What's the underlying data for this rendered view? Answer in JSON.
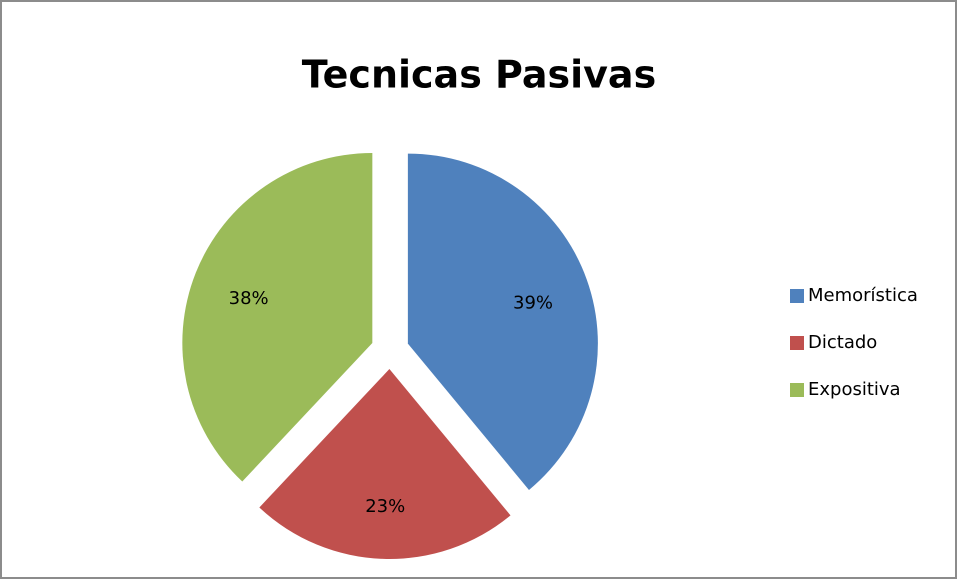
{
  "chart_data": {
    "type": "pie",
    "title": "Tecnicas Pasivas",
    "categories": [
      "Memorística",
      "Dictado",
      "Expositiva"
    ],
    "values": [
      39,
      23,
      38
    ],
    "value_labels": [
      "39%",
      "23%",
      "38%"
    ],
    "colors": [
      "#4f81bd",
      "#c0504d",
      "#9bbb59"
    ],
    "legend": "right"
  }
}
